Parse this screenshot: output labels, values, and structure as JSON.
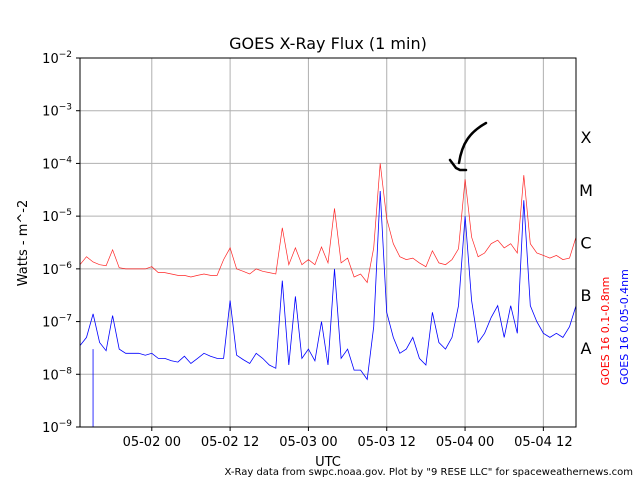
{
  "chart_data": {
    "type": "line",
    "title": "GOES X-Ray Flux (1 min)",
    "xlabel": "UTC",
    "ylabel": "Watts - m^-2",
    "yscale": "log",
    "ylim_exponents": [
      -9,
      -2
    ],
    "y_tick_labels": [
      {
        "base": "10",
        "exp": "−9"
      },
      {
        "base": "10",
        "exp": "−8"
      },
      {
        "base": "10",
        "exp": "−7"
      },
      {
        "base": "10",
        "exp": "−6"
      },
      {
        "base": "10",
        "exp": "−5"
      },
      {
        "base": "10",
        "exp": "−4"
      },
      {
        "base": "10",
        "exp": "−3"
      },
      {
        "base": "10",
        "exp": "−2"
      }
    ],
    "xlim_hours": [
      -35,
      41
    ],
    "x_ticks": [
      {
        "label": "05-02 00",
        "hours": -24
      },
      {
        "label": "05-02 12",
        "hours": -12
      },
      {
        "label": "05-03 00",
        "hours": 0
      },
      {
        "label": "05-03 12",
        "hours": 12
      },
      {
        "label": "05-04 00",
        "hours": 24
      },
      {
        "label": "05-04 12",
        "hours": 36
      }
    ],
    "grid": true,
    "flare_classes": [
      {
        "label": "X",
        "exp": -4
      },
      {
        "label": "M",
        "exp": -5
      },
      {
        "label": "C",
        "exp": -6
      },
      {
        "label": "B",
        "exp": -7
      },
      {
        "label": "A",
        "exp": -8
      }
    ],
    "series": [
      {
        "name": "GOES 16 0.1-0.8nm",
        "color": "#ff0000",
        "x": [
          -35,
          -34,
          -33,
          -32,
          -31,
          -30,
          -29,
          -28,
          -27,
          -26,
          -25,
          -24,
          -23,
          -22,
          -21,
          -20,
          -19,
          -18,
          -17,
          -16,
          -15,
          -14,
          -13,
          -12,
          -11,
          -10,
          -9,
          -8,
          -7,
          -6,
          -5,
          -4,
          -3,
          -2,
          -1,
          0,
          1,
          2,
          3,
          4,
          5,
          6,
          7,
          8,
          9,
          10,
          11,
          12,
          13,
          14,
          15,
          16,
          17,
          18,
          19,
          20,
          21,
          22,
          23,
          24,
          25,
          26,
          27,
          28,
          29,
          30,
          31,
          32,
          33,
          34,
          35,
          36,
          37,
          38,
          39,
          40,
          41
        ],
        "y": [
          1.2e-06,
          1.7e-06,
          1.35e-06,
          1.2e-06,
          1.15e-06,
          2.3e-06,
          1.05e-06,
          1e-06,
          1e-06,
          1e-06,
          1e-06,
          1.1e-06,
          8.5e-07,
          8.5e-07,
          8e-07,
          7.5e-07,
          7.5e-07,
          7e-07,
          7.5e-07,
          8e-07,
          7.5e-07,
          7.5e-07,
          1.5e-06,
          2.5e-06,
          1e-06,
          9e-07,
          8e-07,
          1e-06,
          9e-07,
          8.5e-07,
          8e-07,
          6e-06,
          1.2e-06,
          2.5e-06,
          1.2e-06,
          1.5e-06,
          1.2e-06,
          2.6e-06,
          1.3e-06,
          1.4e-05,
          1.3e-06,
          1.6e-06,
          7e-07,
          8e-07,
          5.5e-07,
          2.5e-06,
          0.0001,
          9e-06,
          3e-06,
          1.7e-06,
          1.5e-06,
          1.6e-06,
          1.3e-06,
          1.1e-06,
          2.2e-06,
          1.3e-06,
          1.2e-06,
          1.5e-06,
          2.4e-06,
          5e-05,
          4e-06,
          1.7e-06,
          2e-06,
          3e-06,
          3.5e-06,
          2.5e-06,
          3e-06,
          2e-06,
          6e-05,
          3e-06,
          2e-06,
          1.8e-06,
          1.6e-06,
          1.8e-06,
          1.5e-06,
          1.6e-06,
          4e-06
        ]
      },
      {
        "name": "GOES 16 0.05-0.4nm",
        "color": "#0000ff",
        "x": [
          -35,
          -34,
          -33,
          -32,
          -31,
          -30,
          -29,
          -28,
          -27,
          -26,
          -25,
          -24,
          -23,
          -22,
          -21,
          -20,
          -19,
          -18,
          -17,
          -16,
          -15,
          -14,
          -13,
          -12,
          -11,
          -10,
          -9,
          -8,
          -7,
          -6,
          -5,
          -4,
          -3,
          -2,
          -1,
          0,
          1,
          2,
          3,
          4,
          5,
          6,
          7,
          8,
          9,
          10,
          11,
          12,
          13,
          14,
          15,
          16,
          17,
          18,
          19,
          20,
          21,
          22,
          23,
          24,
          25,
          26,
          27,
          28,
          29,
          30,
          31,
          32,
          33,
          34,
          35,
          36,
          37,
          38,
          39,
          40,
          41
        ],
        "y": [
          3.5e-08,
          5e-08,
          1.4e-07,
          4e-08,
          2.8e-08,
          1.3e-07,
          3e-08,
          2.5e-08,
          2.5e-08,
          2.5e-08,
          2.3e-08,
          2.5e-08,
          2e-08,
          2e-08,
          1.8e-08,
          1.7e-08,
          2.2e-08,
          1.6e-08,
          2e-08,
          2.5e-08,
          2.2e-08,
          2e-08,
          2e-08,
          2.5e-07,
          2.3e-08,
          1.9e-08,
          1.6e-08,
          2.5e-08,
          2e-08,
          1.5e-08,
          1.3e-08,
          6e-07,
          1.5e-08,
          3e-07,
          2e-08,
          3e-08,
          1.8e-08,
          1e-07,
          1.5e-08,
          1e-06,
          2e-08,
          3e-08,
          1.2e-08,
          1.2e-08,
          8e-09,
          8e-08,
          3e-05,
          1.5e-07,
          5e-08,
          2.5e-08,
          3e-08,
          5e-08,
          2e-08,
          1.5e-08,
          1.5e-07,
          4e-08,
          3e-08,
          5e-08,
          2e-07,
          1e-05,
          2.5e-07,
          4e-08,
          6e-08,
          1.2e-07,
          2e-07,
          5e-08,
          2e-07,
          6e-08,
          2e-05,
          2e-07,
          1e-07,
          6e-08,
          5e-08,
          6e-08,
          5e-08,
          8e-08,
          2e-07
        ]
      }
    ],
    "annotation": {
      "type": "hand-drawn-arrow",
      "target_x_hours": 24,
      "target_flux": 0.0001
    },
    "credit": "X-Ray data from swpc.noaa.gov. Plot by \"9 RESE LLC\" for spaceweathernews.com"
  }
}
